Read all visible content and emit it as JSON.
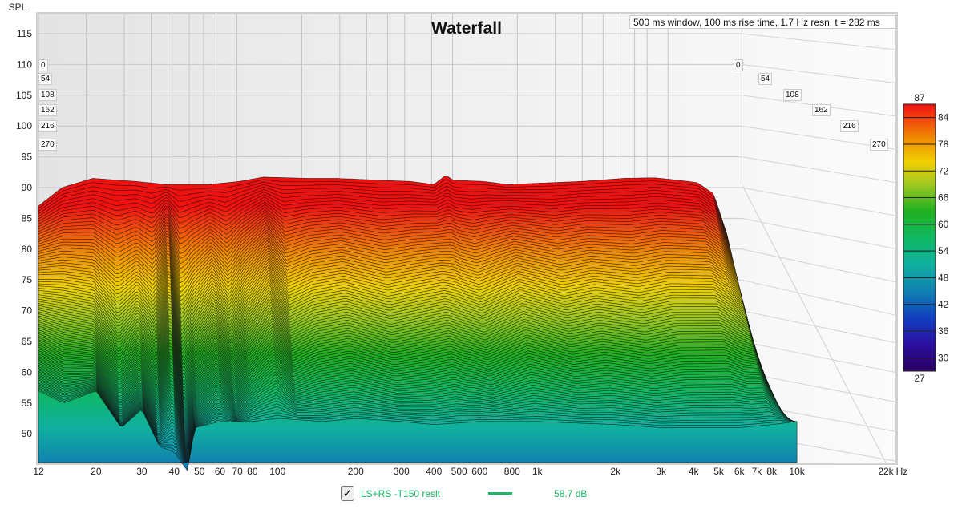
{
  "chart_data": {
    "type": "area",
    "title": "Waterfall",
    "info": "500 ms window, 100 ms rise time,  1.7 Hz resn, t = 282 ms",
    "ylabel": "SPL",
    "xlabel_unit": "Hz",
    "ylim": [
      45,
      117
    ],
    "xlim": [
      12,
      22000
    ],
    "y_ticks": [
      115,
      110,
      105,
      100,
      95,
      90,
      85,
      80,
      75,
      70,
      65,
      60,
      55,
      50
    ],
    "x_ticks": [
      {
        "v": 12,
        "l": "12"
      },
      {
        "v": 20,
        "l": "20"
      },
      {
        "v": 30,
        "l": "30"
      },
      {
        "v": 40,
        "l": "40"
      },
      {
        "v": 50,
        "l": "50"
      },
      {
        "v": 60,
        "l": "60"
      },
      {
        "v": 70,
        "l": "70"
      },
      {
        "v": 80,
        "l": "80"
      },
      {
        "v": 100,
        "l": "100"
      },
      {
        "v": 200,
        "l": "200"
      },
      {
        "v": 300,
        "l": "300"
      },
      {
        "v": 400,
        "l": "400"
      },
      {
        "v": 500,
        "l": "500"
      },
      {
        "v": 600,
        "l": "600"
      },
      {
        "v": 800,
        "l": "800"
      },
      {
        "v": 1000,
        "l": "1k"
      },
      {
        "v": 2000,
        "l": "2k"
      },
      {
        "v": 3000,
        "l": "3k"
      },
      {
        "v": 4000,
        "l": "4k"
      },
      {
        "v": 5000,
        "l": "5k"
      },
      {
        "v": 6000,
        "l": "6k"
      },
      {
        "v": 7000,
        "l": "7k"
      },
      {
        "v": 8000,
        "l": "8k"
      },
      {
        "v": 10000,
        "l": "10k"
      },
      {
        "v": 22000,
        "l": "22k"
      }
    ],
    "time_ticks_ms": [
      "0",
      "54",
      "108",
      "162",
      "216",
      "270"
    ],
    "time_range_ms": [
      0,
      282
    ],
    "slice_count": 90,
    "slices": {
      "t0": [
        [
          12,
          87
        ],
        [
          15,
          90
        ],
        [
          20,
          91.5
        ],
        [
          30,
          91
        ],
        [
          40,
          90.5
        ],
        [
          60,
          90.5
        ],
        [
          80,
          91
        ],
        [
          100,
          91.7
        ],
        [
          150,
          91.5
        ],
        [
          200,
          91.5
        ],
        [
          300,
          91.2
        ],
        [
          400,
          91
        ],
        [
          500,
          90.5
        ],
        [
          560,
          92
        ],
        [
          600,
          91.2
        ],
        [
          800,
          91
        ],
        [
          1000,
          90.5
        ],
        [
          2000,
          91
        ],
        [
          3000,
          91.5
        ],
        [
          4000,
          91.6
        ],
        [
          5000,
          91.2
        ],
        [
          6000,
          90.8
        ],
        [
          7000,
          89
        ],
        [
          8000,
          82
        ],
        [
          9000,
          66
        ],
        [
          10000,
          52
        ]
      ],
      "t141": [
        [
          12,
          70
        ],
        [
          15,
          69
        ],
        [
          20,
          68
        ],
        [
          25,
          62
        ],
        [
          30,
          66
        ],
        [
          35,
          61
        ],
        [
          40,
          71
        ],
        [
          45,
          58
        ],
        [
          50,
          63
        ],
        [
          60,
          68
        ],
        [
          70,
          63
        ],
        [
          80,
          68
        ],
        [
          100,
          73
        ],
        [
          120,
          67
        ],
        [
          150,
          69
        ],
        [
          200,
          70
        ],
        [
          300,
          68
        ],
        [
          500,
          70
        ],
        [
          700,
          68
        ],
        [
          1000,
          71
        ],
        [
          1500,
          69
        ],
        [
          2000,
          70
        ],
        [
          3000,
          69
        ],
        [
          4000,
          70
        ],
        [
          6000,
          70
        ],
        [
          8000,
          67
        ],
        [
          9000,
          60
        ],
        [
          10000,
          52
        ]
      ],
      "t282": [
        [
          12,
          57
        ],
        [
          15,
          55
        ],
        [
          20,
          57
        ],
        [
          25,
          51
        ],
        [
          30,
          54
        ],
        [
          35,
          48
        ],
        [
          40,
          47
        ],
        [
          45,
          44
        ],
        [
          48,
          51
        ],
        [
          60,
          52
        ],
        [
          80,
          52
        ],
        [
          100,
          52.5
        ],
        [
          150,
          52
        ],
        [
          200,
          52.5
        ],
        [
          300,
          52
        ],
        [
          400,
          51.5
        ],
        [
          600,
          52
        ],
        [
          1000,
          52
        ],
        [
          2000,
          51.5
        ],
        [
          3000,
          51
        ],
        [
          4000,
          51
        ],
        [
          6000,
          51
        ],
        [
          8000,
          51.5
        ],
        [
          10000,
          52
        ]
      ]
    },
    "colorbar": {
      "min": 27,
      "max": 87,
      "ticks": [
        84,
        78,
        72,
        66,
        60,
        54,
        48,
        42,
        36,
        30
      ]
    },
    "legend": [
      {
        "name": "LS+RS -T150 reslt",
        "value": "58.7 dB",
        "color": "#18b868",
        "checked": true
      }
    ]
  },
  "labels": {
    "max": "87",
    "min": "27",
    "unit": "Hz",
    "check": "✓"
  }
}
